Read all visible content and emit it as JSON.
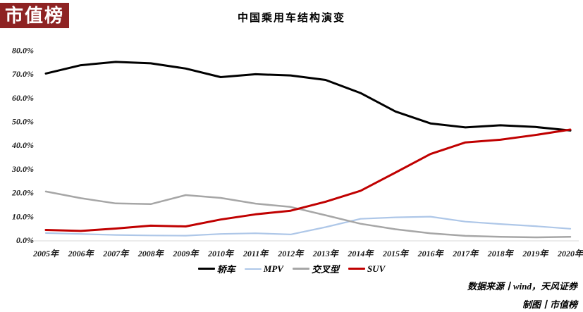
{
  "logo": {
    "text": "市值榜",
    "bg_color": "#8e2323",
    "text_color": "#ffffff"
  },
  "footer": {
    "source": "数据来源丨wind，天风证券",
    "credit": "制图丨市值榜"
  },
  "chart_data": {
    "type": "line",
    "title": "中国乘用车结构演变",
    "x": [
      "2005年",
      "2006年",
      "2007年",
      "2008年",
      "2009年",
      "2010年",
      "2011年",
      "2012年",
      "2013年",
      "2014年",
      "2015年",
      "2016年",
      "2017年",
      "2018年",
      "2019年",
      "2020年"
    ],
    "yticks": [
      "0.0%",
      "10.0%",
      "20.0%",
      "30.0%",
      "40.0%",
      "50.0%",
      "60.0%",
      "70.0%",
      "80.0%"
    ],
    "ylim": [
      0,
      80
    ],
    "ytick_step": 10,
    "grid": false,
    "legend_position": "bottom",
    "axis_line_color": "#d9d9d9",
    "series": [
      {
        "name": "轿车",
        "color": "#000000",
        "width": 3,
        "values": [
          70.2,
          73.7,
          75.1,
          74.5,
          72.3,
          68.7,
          69.9,
          69.4,
          67.5,
          62.0,
          54.2,
          49.2,
          47.5,
          48.4,
          47.7,
          46.2
        ]
      },
      {
        "name": "MPV",
        "color": "#aec7e8",
        "width": 2.2,
        "values": [
          3.0,
          2.6,
          2.2,
          2.0,
          1.9,
          2.6,
          2.9,
          2.4,
          5.5,
          9.0,
          9.6,
          9.9,
          7.8,
          6.8,
          5.9,
          4.8
        ]
      },
      {
        "name": "交叉型",
        "color": "#a6a6a6",
        "width": 2.5,
        "values": [
          20.5,
          17.7,
          15.5,
          15.2,
          19.0,
          17.8,
          15.4,
          14.0,
          10.5,
          6.9,
          4.6,
          2.9,
          1.8,
          1.4,
          1.2,
          1.4
        ]
      },
      {
        "name": "SUV",
        "color": "#c00000",
        "width": 3,
        "values": [
          4.3,
          3.9,
          4.9,
          6.1,
          5.8,
          8.7,
          10.9,
          12.4,
          16.2,
          20.8,
          28.5,
          36.3,
          41.2,
          42.3,
          44.3,
          46.6
        ]
      }
    ]
  }
}
